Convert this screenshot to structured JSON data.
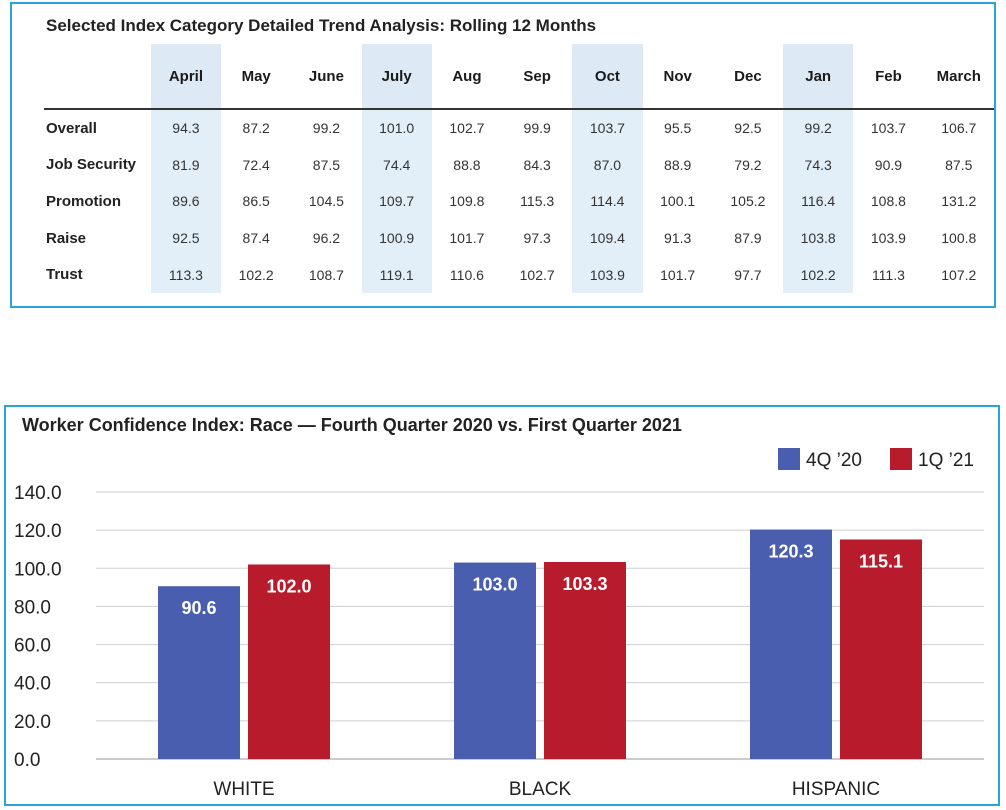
{
  "table": {
    "title": "Selected Index Category Detailed Trend Analysis: Rolling 12 Months",
    "columns": [
      "April",
      "May",
      "June",
      "July",
      "Aug",
      "Sep",
      "Oct",
      "Nov",
      "Dec",
      "Jan",
      "Feb",
      "March"
    ],
    "rows": [
      {
        "label": "Overall",
        "values": [
          "94.3",
          "87.2",
          "99.2",
          "101.0",
          "102.7",
          "99.9",
          "103.7",
          "95.5",
          "92.5",
          "99.2",
          "103.7",
          "106.7"
        ]
      },
      {
        "label": "Job Security",
        "values": [
          "81.9",
          "72.4",
          "87.5",
          "74.4",
          "88.8",
          "84.3",
          "87.0",
          "88.9",
          "79.2",
          "74.3",
          "90.9",
          "87.5"
        ]
      },
      {
        "label": "Promotion",
        "values": [
          "89.6",
          "86.5",
          "104.5",
          "109.7",
          "109.8",
          "115.3",
          "114.4",
          "100.1",
          "105.2",
          "116.4",
          "108.8",
          "131.2"
        ]
      },
      {
        "label": "Raise",
        "values": [
          "92.5",
          "87.4",
          "96.2",
          "100.9",
          "101.7",
          "97.3",
          "109.4",
          "91.3",
          "87.9",
          "103.8",
          "103.9",
          "100.8"
        ]
      },
      {
        "label": "Trust",
        "values": [
          "113.3",
          "102.2",
          "108.7",
          "119.1",
          "110.6",
          "102.7",
          "103.9",
          "101.7",
          "97.7",
          "102.2",
          "111.3",
          "107.2"
        ]
      }
    ]
  },
  "chart_data": {
    "type": "bar",
    "title": "Worker Confidence Index: Race — Fourth Quarter 2020 vs. First Quarter 2021",
    "categories": [
      "WHITE",
      "BLACK",
      "HISPANIC"
    ],
    "series": [
      {
        "name": "4Q ’20",
        "values": [
          90.6,
          103.0,
          120.3
        ],
        "labels": [
          "90.6",
          "103.0",
          "120.3"
        ],
        "color": "#4a5eaf"
      },
      {
        "name": "1Q ’21",
        "values": [
          102.0,
          103.3,
          115.1
        ],
        "labels": [
          "102.0",
          "103.3",
          "115.1"
        ],
        "color": "#b81c2c"
      }
    ],
    "ylim": [
      0,
      140
    ],
    "yticks": [
      "0.0",
      "20.0",
      "40.0",
      "60.0",
      "80.0",
      "100.0",
      "120.0",
      "140.0"
    ],
    "grid": true,
    "legend_position": "top-right",
    "xlabel": "",
    "ylabel": ""
  }
}
